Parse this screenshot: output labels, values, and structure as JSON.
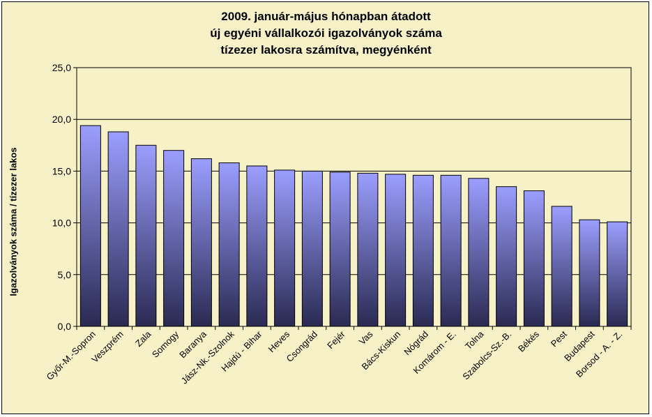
{
  "chart_data": {
    "type": "bar",
    "title": [
      "2009. január-május hónapban átadott",
      "új egyéni vállalkozói  igazolványok száma",
      "tízezer lakosra számítva, megyénként"
    ],
    "xlabel": "",
    "ylabel": "Igazolványok száma / tízezer lakos",
    "ylim": [
      0,
      25
    ],
    "yticks": [
      "0,0",
      "5,0",
      "10,0",
      "15,0",
      "20,0",
      "25,0"
    ],
    "grid": true,
    "legend": "none",
    "categories": [
      "Győr-M.-Sopron",
      "Veszprém",
      "Zala",
      "Somogy",
      "Baranya",
      "Jász-Nk.-Szolnok",
      "Hajdú - Bihar",
      "Heves",
      "Csongrád",
      "Fejér",
      "Vas",
      "Bács-Kiskun",
      "Nógrád",
      "Komárom - E.",
      "Tolna",
      "Szabolcs-Sz.-B.",
      "Békés",
      "Pest",
      "Budapest",
      "Borsod - A. - Z."
    ],
    "values": [
      19.4,
      18.8,
      17.5,
      17.0,
      16.2,
      15.8,
      15.5,
      15.1,
      15.0,
      14.9,
      14.8,
      14.7,
      14.6,
      14.6,
      14.3,
      13.5,
      13.1,
      11.6,
      10.3,
      10.1
    ],
    "colors": {
      "bar_top": "#9b9efe",
      "bar_bottom": "#2a2a52",
      "plot_bg": "#f7f1c7",
      "grid": "#000000"
    }
  }
}
